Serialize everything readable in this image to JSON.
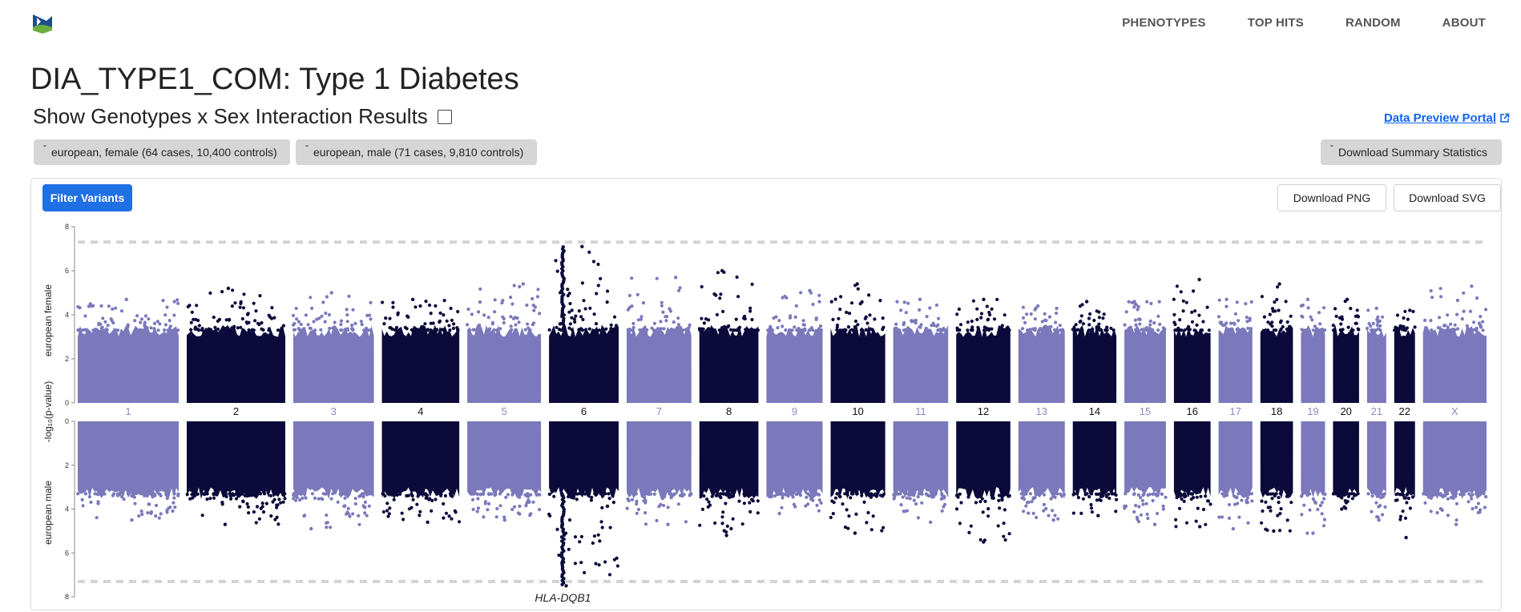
{
  "nav": {
    "items": [
      "PHENOTYPES",
      "TOP HITS",
      "RANDOM",
      "ABOUT"
    ]
  },
  "page": {
    "title": "DIA_TYPE1_COM: Type 1 Diabetes",
    "sex_toggle_label": "Show Genotypes x Sex Interaction Results",
    "data_portal_link": "Data Preview Portal"
  },
  "filters": {
    "female_label": "european, female (64 cases, 10,400 controls)",
    "male_label": "european, male (71 cases, 9,810 controls)",
    "download_summary_label": "Download Summary Statistics"
  },
  "toolbar": {
    "filter_label": "Filter Variants",
    "download_png_label": "Download PNG",
    "download_svg_label": "Download SVG"
  },
  "colors": {
    "light_chr": "#7b79bb",
    "dark_chr": "#0b0a3a",
    "accent_button": "#1f6fe5",
    "link": "#0d63f0",
    "threshold": "#d3d3d3"
  },
  "chart_data": {
    "type": "scatter",
    "subtype": "miami",
    "ylabel": "-log₁₀(p-value)",
    "panels": [
      {
        "name": "european female",
        "ylim": [
          0,
          8
        ],
        "ticks": [
          0,
          2,
          4,
          6,
          8
        ],
        "direction": "up"
      },
      {
        "name": "european male",
        "ylim": [
          0,
          8
        ],
        "ticks": [
          0,
          2,
          4,
          6,
          8
        ],
        "direction": "down"
      }
    ],
    "significance_threshold": 7.3,
    "chromosomes": [
      "1",
      "2",
      "3",
      "4",
      "5",
      "6",
      "7",
      "8",
      "9",
      "10",
      "11",
      "12",
      "13",
      "14",
      "15",
      "16",
      "17",
      "18",
      "19",
      "20",
      "21",
      "22",
      "X"
    ],
    "chrom_peaks_female": [
      4.7,
      5.2,
      5.0,
      4.7,
      5.4,
      7.1,
      5.7,
      6.0,
      5.1,
      5.4,
      4.7,
      4.7,
      4.4,
      4.6,
      4.6,
      5.6,
      4.7,
      5.4,
      4.7,
      4.7,
      4.3,
      4.2,
      5.3
    ],
    "chrom_peaks_male": [
      4.5,
      4.7,
      4.9,
      4.6,
      4.5,
      7.5,
      4.7,
      5.2,
      4.2,
      5.1,
      4.6,
      5.5,
      4.5,
      4.3,
      4.7,
      4.8,
      4.9,
      5.0,
      5.1,
      4.0,
      4.5,
      5.3,
      4.7
    ],
    "annotations": [
      {
        "label": "HLA-DQB1",
        "chromosome": "6",
        "panel": "european male",
        "y": 7.5
      }
    ]
  }
}
